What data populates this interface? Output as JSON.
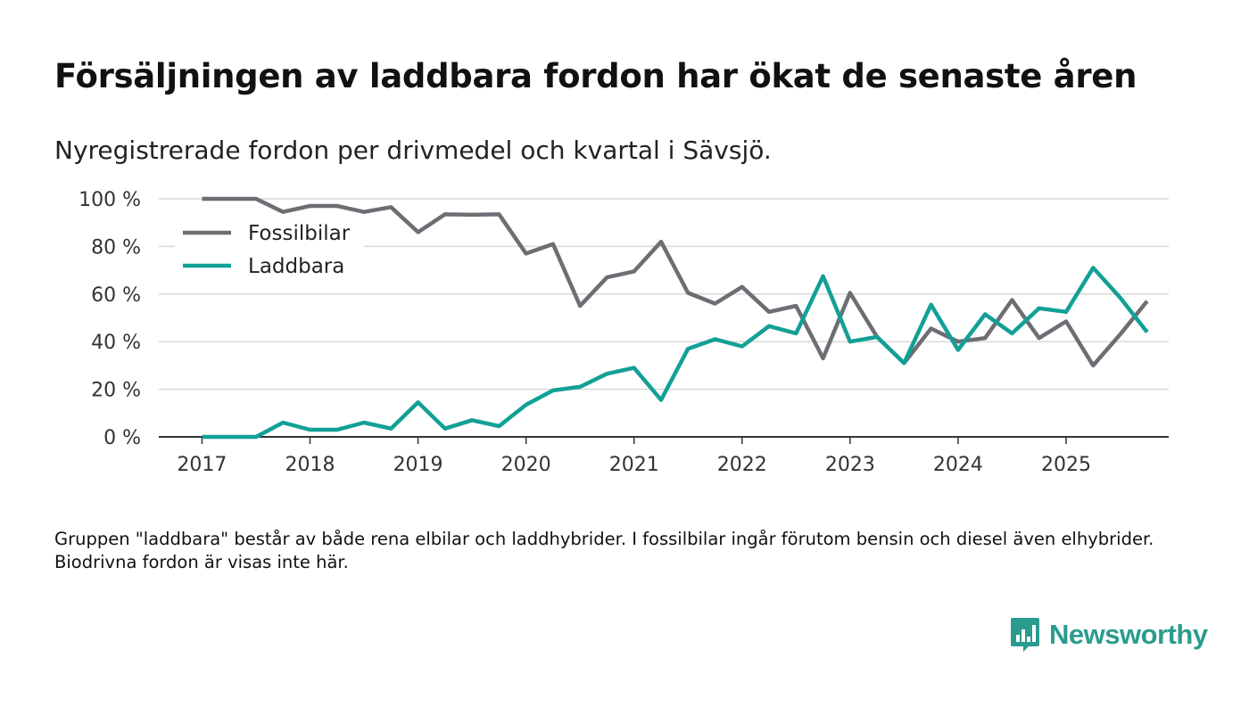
{
  "title": "Försäljningen av laddbara fordon har ökat de senaste åren",
  "subtitle": "Nyregistrerade fordon per drivmedel och kvartal i Sävsjö.",
  "footnote": "Gruppen \"laddbara\" består av både rena elbilar och laddhybrider. I fossilbilar ingår förutom bensin och diesel även elhybrider. Biodrivna fordon är visas inte här.",
  "brand": {
    "name": "Newsworthy",
    "icon": "newsworthy-logo-icon",
    "color": "#2a9c8e"
  },
  "colors": {
    "fossil": "#6e6d73",
    "laddbara": "#12a096",
    "grid": "#d9d9d9",
    "axis": "#333333"
  },
  "chart_data": {
    "type": "line",
    "title": "Försäljningen av laddbara fordon har ökat de senaste åren",
    "xlabel": "",
    "ylabel": "",
    "x": [
      2017.0,
      2017.25,
      2017.5,
      2017.75,
      2018.0,
      2018.25,
      2018.5,
      2018.75,
      2019.0,
      2019.25,
      2019.5,
      2019.75,
      2020.0,
      2020.25,
      2020.5,
      2020.75,
      2021.0,
      2021.25,
      2021.5,
      2021.75,
      2022.0,
      2022.25,
      2022.5,
      2022.75,
      2023.0,
      2023.25,
      2023.5,
      2023.75,
      2024.0,
      2024.25,
      2024.5,
      2024.75,
      2025.0,
      2025.25,
      2025.5,
      2025.75
    ],
    "xlim": [
      2016.6,
      2025.95
    ],
    "ylim": [
      0,
      100
    ],
    "yticks": [
      0,
      20,
      40,
      60,
      80,
      100
    ],
    "ytick_labels": [
      "0 %",
      "20 %",
      "40 %",
      "60 %",
      "80 %",
      "100 %"
    ],
    "xticks": [
      2017,
      2018,
      2019,
      2020,
      2021,
      2022,
      2023,
      2024,
      2025
    ],
    "xtick_labels": [
      "2017",
      "2018",
      "2019",
      "2020",
      "2021",
      "2022",
      "2023",
      "2024",
      "2025"
    ],
    "grid": true,
    "legend_position": "top-left",
    "series": [
      {
        "name": "Fossilbilar",
        "color": "#6e6d73",
        "values": [
          100,
          100,
          100,
          94.5,
          97,
          97,
          94.5,
          96.5,
          86,
          93.5,
          93.3,
          93.5,
          77,
          81,
          55,
          67,
          69.5,
          82,
          60.5,
          56,
          63,
          52.5,
          55,
          33,
          60.5,
          42,
          31,
          45.5,
          40,
          41.5,
          57.5,
          41.5,
          48.5,
          30,
          43,
          57
        ]
      },
      {
        "name": "Laddbara",
        "color": "#12a096",
        "values": [
          0,
          0,
          0,
          6,
          3,
          3,
          6,
          3.5,
          14.5,
          3.5,
          7,
          4.5,
          13.5,
          19.5,
          21,
          26.5,
          29,
          15.5,
          37,
          41,
          38,
          46.5,
          43.5,
          67.5,
          40,
          42,
          31,
          55.5,
          36.5,
          51.5,
          43.5,
          54,
          52.5,
          71,
          58.5,
          44
        ]
      }
    ]
  }
}
